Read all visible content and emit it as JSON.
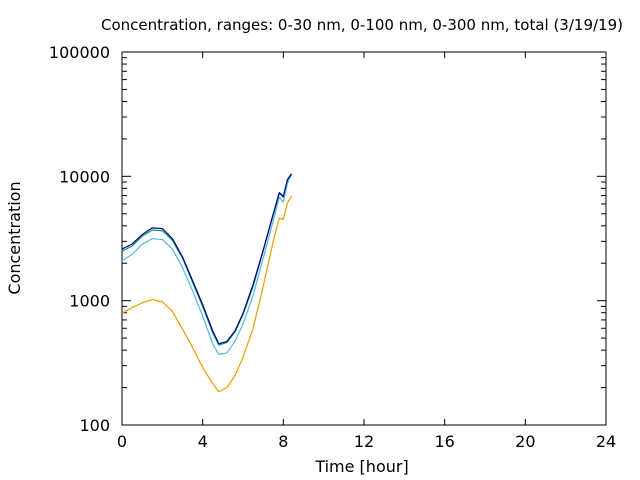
{
  "chart_data": {
    "type": "line",
    "title": "Concentration, ranges: 0-30 nm, 0-100 nm, 0-300 nm, total (3/19/19)",
    "xlabel": "Time [hour]",
    "ylabel": "Concentration",
    "xlim": [
      0,
      24
    ],
    "ylim": [
      100,
      100000
    ],
    "yscale": "log",
    "grid": false,
    "x_ticks": [
      "0",
      "4",
      "8",
      "12",
      "16",
      "20",
      "24"
    ],
    "y_ticks": [
      "100",
      "1000",
      "10000",
      "100000"
    ],
    "series": [
      {
        "color": "#e69f00",
        "x": [
          0,
          0.5,
          1,
          1.5,
          2,
          2.5,
          3,
          3.5,
          4,
          4.5,
          4.8,
          5.2,
          5.6,
          6,
          6.5,
          7,
          7.5,
          7.8,
          8,
          8.2,
          8.4
        ],
        "y": [
          790,
          880,
          960,
          1020,
          980,
          820,
          590,
          420,
          290,
          215,
          185,
          200,
          250,
          350,
          600,
          1300,
          3000,
          4600,
          4500,
          6100,
          6900
        ]
      },
      {
        "color": "#56b4e9",
        "x": [
          0,
          0.5,
          1,
          1.5,
          2,
          2.5,
          3,
          3.5,
          4,
          4.5,
          4.8,
          5.2,
          5.6,
          6,
          6.5,
          7,
          7.5,
          7.8,
          8,
          8.2,
          8.4
        ],
        "y": [
          2100,
          2350,
          2850,
          3150,
          3100,
          2600,
          1850,
          1200,
          750,
          450,
          370,
          380,
          470,
          650,
          1100,
          2200,
          4400,
          6800,
          6200,
          8800,
          10200
        ]
      },
      {
        "color": "#009e73",
        "x": [
          0,
          0.5,
          1,
          1.5,
          2,
          2.5,
          3,
          3.5,
          4,
          4.5,
          4.8,
          5.2,
          5.6,
          6,
          6.5,
          7,
          7.5,
          7.8,
          8,
          8.2,
          8.4
        ],
        "y": [
          2500,
          2750,
          3300,
          3700,
          3650,
          3050,
          2200,
          1400,
          900,
          550,
          440,
          460,
          560,
          770,
          1300,
          2500,
          4900,
          7300,
          6800,
          9300,
          10400
        ]
      },
      {
        "color": "#000080",
        "x": [
          0,
          0.5,
          1,
          1.5,
          2,
          2.5,
          3,
          3.5,
          4,
          4.5,
          4.8,
          5.2,
          5.6,
          6,
          6.5,
          7,
          7.5,
          7.8,
          8,
          8.2,
          8.4
        ],
        "y": [
          2600,
          2850,
          3400,
          3850,
          3800,
          3150,
          2250,
          1450,
          930,
          570,
          450,
          470,
          570,
          790,
          1350,
          2550,
          5000,
          7400,
          6900,
          9400,
          10500
        ]
      }
    ]
  }
}
